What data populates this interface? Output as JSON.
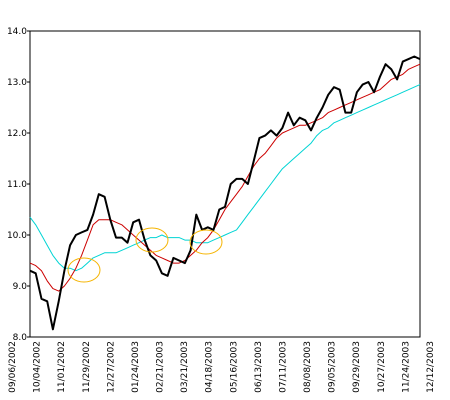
{
  "chart_data": {
    "type": "line",
    "xtick_labels": [
      "09/06/2002",
      "10/04/2002",
      "11/01/2002",
      "11/29/2002",
      "12/27/2002",
      "01/24/2003",
      "02/21/2003",
      "03/21/2003",
      "04/18/2003",
      "05/16/2003",
      "06/13/2003",
      "07/11/2003",
      "08/08/2003",
      "09/05/2003",
      "09/29/2003",
      "10/27/2003",
      "11/24/2003",
      "12/12/2003"
    ],
    "ylim": [
      8,
      14
    ],
    "yticks": [
      {
        "value": 8,
        "label": "8.0"
      },
      {
        "value": 9,
        "label": "9.0"
      },
      {
        "value": 10,
        "label": "10.0"
      },
      {
        "value": 11,
        "label": "11.0"
      },
      {
        "value": 12,
        "label": "12.0"
      },
      {
        "value": 13,
        "label": "13.0"
      },
      {
        "value": 14,
        "label": "14.0"
      }
    ],
    "grid": false,
    "series": [
      {
        "color": "#00d4d4",
        "width": 1,
        "values": [
          10.35,
          10.2,
          10.0,
          9.8,
          9.6,
          9.45,
          9.35,
          9.35,
          9.3,
          9.35,
          9.45,
          9.55,
          9.6,
          9.65,
          9.65,
          9.65,
          9.7,
          9.75,
          9.8,
          9.85,
          9.9,
          9.95,
          9.95,
          10.0,
          9.95,
          9.95,
          9.95,
          9.9,
          9.9,
          9.85,
          9.85,
          9.85,
          9.9,
          9.95,
          10.0,
          10.05,
          10.1,
          10.25,
          10.4,
          10.55,
          10.7,
          10.85,
          11.0,
          11.15,
          11.3,
          11.4,
          11.5,
          11.6,
          11.7,
          11.8,
          11.95,
          12.05,
          12.1,
          12.2,
          12.25,
          12.3,
          12.35,
          12.4,
          12.45,
          12.5,
          12.55,
          12.6,
          12.65,
          12.7,
          12.75,
          12.8,
          12.85,
          12.9,
          12.95
        ]
      },
      {
        "color": "#cc0000",
        "width": 1,
        "values": [
          9.45,
          9.4,
          9.3,
          9.1,
          8.95,
          8.9,
          9.0,
          9.15,
          9.35,
          9.6,
          9.9,
          10.2,
          10.3,
          10.3,
          10.3,
          10.25,
          10.2,
          10.1,
          10.0,
          9.9,
          9.8,
          9.7,
          9.6,
          9.55,
          9.5,
          9.45,
          9.45,
          9.5,
          9.6,
          9.7,
          9.85,
          9.95,
          10.1,
          10.3,
          10.5,
          10.65,
          10.8,
          10.95,
          11.15,
          11.35,
          11.5,
          11.6,
          11.75,
          11.9,
          12.0,
          12.05,
          12.1,
          12.15,
          12.15,
          12.2,
          12.25,
          12.3,
          12.4,
          12.45,
          12.5,
          12.55,
          12.6,
          12.65,
          12.7,
          12.75,
          12.8,
          12.85,
          12.95,
          13.05,
          13.1,
          13.15,
          13.25,
          13.3,
          13.35
        ]
      },
      {
        "color": "#000000",
        "width": 2,
        "values": [
          9.3,
          9.25,
          8.75,
          8.7,
          8.15,
          8.7,
          9.3,
          9.8,
          10.0,
          10.05,
          10.1,
          10.4,
          10.8,
          10.75,
          10.3,
          9.95,
          9.95,
          9.85,
          10.25,
          10.3,
          9.9,
          9.6,
          9.5,
          9.25,
          9.2,
          9.55,
          9.5,
          9.45,
          9.7,
          10.4,
          10.1,
          10.15,
          10.1,
          10.5,
          10.55,
          11.0,
          11.1,
          11.1,
          11.0,
          11.45,
          11.9,
          11.95,
          12.05,
          11.95,
          12.1,
          12.4,
          12.15,
          12.3,
          12.25,
          12.05,
          12.3,
          12.5,
          12.75,
          12.9,
          12.85,
          12.4,
          12.4,
          12.8,
          12.95,
          13.0,
          12.8,
          13.1,
          13.35,
          13.25,
          13.05,
          13.4,
          13.45,
          13.5,
          13.45
        ]
      }
    ]
  }
}
